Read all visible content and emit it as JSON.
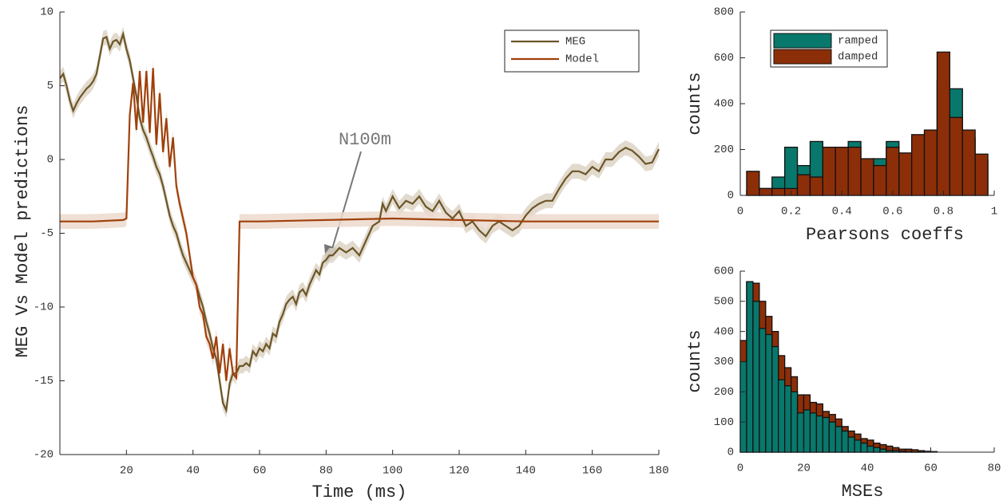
{
  "chart_data": [
    {
      "type": "line",
      "xlabel": "Time (ms)",
      "ylabel": "MEG Vs Model predictions",
      "annotation": "N100m",
      "xlim": [
        0,
        180
      ],
      "ylim": [
        -20,
        10
      ],
      "xticks": [
        20,
        40,
        60,
        80,
        100,
        120,
        140,
        160,
        180
      ],
      "yticks": [
        -20,
        -15,
        -10,
        -5,
        0,
        5,
        10
      ],
      "legend": "upper right",
      "series": [
        {
          "name": "MEG",
          "color": "#6b5628",
          "band_color": "#ddd3c4",
          "error": 0.5,
          "x": [
            0,
            1,
            2,
            3,
            4,
            5,
            6,
            7,
            8,
            9,
            10,
            11,
            12,
            13,
            14,
            15,
            16,
            17,
            18,
            19,
            20,
            21,
            22,
            23,
            24,
            25,
            26,
            27,
            28,
            29,
            30,
            31,
            32,
            33,
            34,
            35,
            36,
            37,
            38,
            39,
            40,
            41,
            42,
            43,
            44,
            45,
            46,
            47,
            48,
            49,
            50,
            51,
            52,
            53,
            54,
            55,
            56,
            57,
            58,
            59,
            60,
            61,
            62,
            63,
            64,
            65,
            66,
            67,
            68,
            69,
            70,
            71,
            72,
            73,
            74,
            75,
            76,
            77,
            78,
            79,
            80,
            81,
            82,
            84,
            86,
            88,
            90,
            92,
            94,
            96,
            97,
            98,
            100,
            102,
            104,
            106,
            108,
            110,
            112,
            114,
            116,
            118,
            120,
            122,
            124,
            126,
            128,
            130,
            132,
            134,
            136,
            138,
            140,
            142,
            144,
            146,
            148,
            150,
            152,
            154,
            156,
            158,
            160,
            162,
            164,
            166,
            168,
            170,
            172,
            174,
            176,
            178,
            180
          ],
          "values": [
            5.5,
            5.8,
            5,
            4,
            3.3,
            3.8,
            4.2,
            4.5,
            4.8,
            5,
            5.3,
            5.8,
            7,
            8.2,
            8.3,
            7.5,
            8,
            8.1,
            7.8,
            8.5,
            7.5,
            6.7,
            5.5,
            4.3,
            2.8,
            2,
            1.5,
            0.8,
            0.2,
            -0.5,
            -1,
            -1.8,
            -2.8,
            -3.8,
            -4.5,
            -5,
            -5.8,
            -6.5,
            -7,
            -7.5,
            -8,
            -8.5,
            -9.3,
            -10,
            -11,
            -11.8,
            -12.8,
            -13.5,
            -15,
            -16.5,
            -17,
            -15.2,
            -14.5,
            -14.5,
            -14,
            -14,
            -13.8,
            -14,
            -13,
            -13.3,
            -12.8,
            -13,
            -12.5,
            -12.8,
            -11.8,
            -12,
            -11,
            -10.5,
            -9.8,
            -9.5,
            -9.3,
            -9.8,
            -9,
            -8.8,
            -9.2,
            -8.5,
            -8,
            -7.5,
            -7.8,
            -7,
            -6.8,
            -6.5,
            -6.5,
            -6,
            -6.3,
            -6,
            -6.5,
            -5.5,
            -4.5,
            -4.2,
            -3,
            -3.5,
            -2.5,
            -3.3,
            -2.8,
            -3,
            -2.5,
            -3.2,
            -3.5,
            -2.8,
            -3.6,
            -4,
            -3.5,
            -4.5,
            -4.2,
            -4.8,
            -5.2,
            -4.5,
            -4.2,
            -4.5,
            -4.8,
            -4.5,
            -3.8,
            -3.3,
            -3,
            -2.8,
            -2.8,
            -2,
            -1.3,
            -0.8,
            -0.8,
            -1,
            -0.5,
            -0.8,
            0,
            0,
            0.5,
            0.8,
            0.6,
            0.2,
            -0.3,
            -0.2,
            0.7
          ]
        },
        {
          "name": "Model",
          "color": "#a0400a",
          "band_color": "#ecd9cc",
          "error": 0.5,
          "x": [
            0,
            10,
            19,
            20,
            21,
            22,
            23,
            24,
            25,
            26,
            27,
            28,
            29,
            30,
            31,
            32,
            33,
            34,
            35,
            36,
            37,
            38,
            39,
            40,
            41,
            42,
            43,
            44,
            45,
            46,
            47,
            48,
            49,
            50,
            51,
            52,
            53,
            54,
            60,
            80,
            100,
            120,
            140,
            160,
            180
          ],
          "values": [
            -4.2,
            -4.2,
            -4.1,
            -4,
            3,
            5.2,
            2,
            6,
            2.5,
            6,
            1.8,
            6.2,
            1,
            4.5,
            0.5,
            2.8,
            -0.5,
            1.5,
            -1.8,
            -3,
            -4,
            -5,
            -6.5,
            -8,
            -8.5,
            -10,
            -10.5,
            -12,
            -12.5,
            -13.5,
            -12,
            -14.5,
            -12.5,
            -15,
            -12.8,
            -14.5,
            -14.8,
            -4.2,
            -4.2,
            -4.1,
            -4,
            -4.1,
            -4.2,
            -4.2,
            -4.2
          ]
        }
      ]
    },
    {
      "type": "histogram",
      "xlabel": "Pearsons coeffs",
      "ylabel": "counts",
      "bins": [
        0.025,
        0.075,
        0.125,
        0.175,
        0.225,
        0.275,
        0.325,
        0.375,
        0.425,
        0.475,
        0.525,
        0.575,
        0.625,
        0.675,
        0.725,
        0.775,
        0.825,
        0.875,
        0.925,
        0.975
      ],
      "xlim": [
        0,
        1
      ],
      "ylim": [
        0,
        800
      ],
      "xticks": [
        0,
        0.2,
        0.4,
        0.6,
        0.8,
        1
      ],
      "yticks": [
        0,
        200,
        400,
        600,
        800
      ],
      "legend": "upper left",
      "series": [
        {
          "name": "ramped",
          "color": "#08786c",
          "values": [
            20,
            30,
            80,
            210,
            130,
            235,
            150,
            160,
            235,
            150,
            160,
            235,
            180,
            250,
            280,
            500,
            465,
            250,
            150
          ]
        },
        {
          "name": "damped",
          "color": "#8c2e08",
          "values": [
            105,
            30,
            30,
            30,
            90,
            80,
            210,
            210,
            210,
            160,
            130,
            210,
            185,
            265,
            285,
            625,
            340,
            285,
            180
          ]
        }
      ]
    },
    {
      "type": "histogram",
      "xlabel": "MSEs",
      "ylabel": "counts",
      "bins": [
        0,
        2,
        4,
        6,
        8,
        10,
        12,
        14,
        16,
        18,
        20,
        22,
        24,
        26,
        28,
        30,
        32,
        34,
        36,
        38,
        40,
        42,
        44,
        46,
        48,
        50,
        52,
        54,
        56,
        58,
        60,
        62,
        64
      ],
      "xlim": [
        0,
        80
      ],
      "ylim": [
        0,
        600
      ],
      "xticks": [
        0,
        20,
        40,
        60,
        80
      ],
      "yticks": [
        0,
        100,
        200,
        300,
        400,
        500,
        600
      ],
      "series": [
        {
          "color": "#8c2e08",
          "values": [
            370,
            565,
            560,
            500,
            450,
            400,
            320,
            280,
            250,
            190,
            190,
            165,
            160,
            135,
            125,
            110,
            85,
            70,
            60,
            45,
            40,
            30,
            25,
            20,
            15,
            10,
            10,
            8,
            5,
            3,
            2,
            0
          ]
        },
        {
          "color": "#08786c",
          "values": [
            300,
            565,
            500,
            410,
            390,
            350,
            240,
            220,
            200,
            130,
            140,
            130,
            120,
            115,
            100,
            85,
            70,
            50,
            40,
            30,
            20,
            15,
            10,
            5,
            5,
            3,
            2,
            1,
            1,
            0,
            0,
            0
          ]
        }
      ]
    }
  ]
}
